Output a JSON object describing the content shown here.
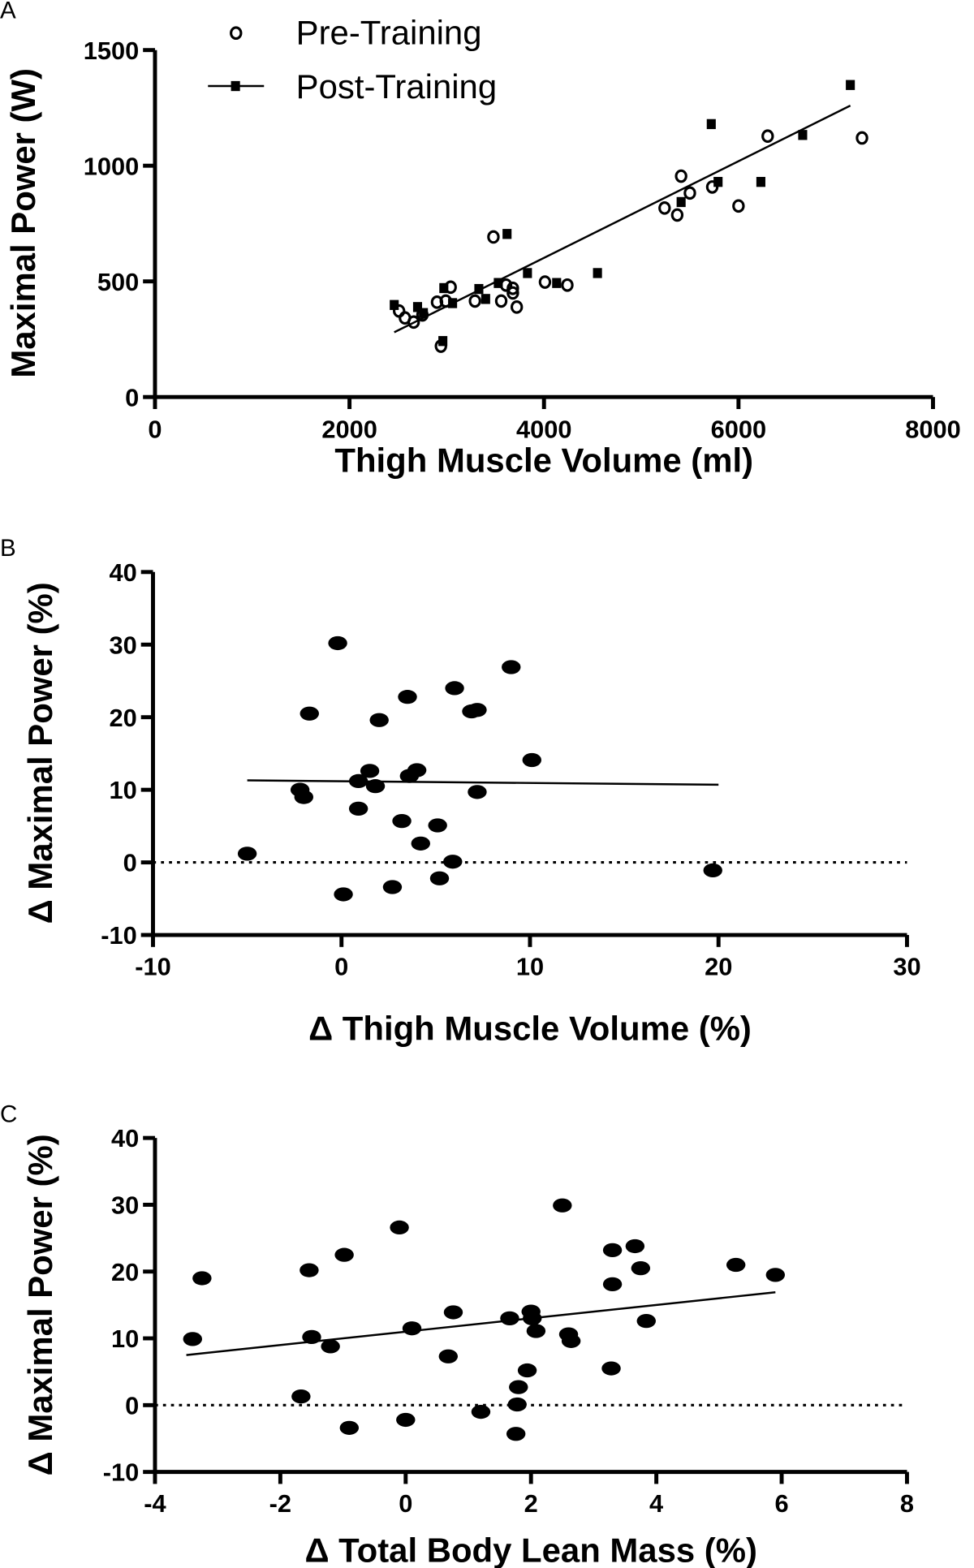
{
  "chart_data": [
    {
      "panel": "A",
      "type": "scatter",
      "xlabel": "Thigh Muscle Volume (ml)",
      "ylabel": "Maximal Power (W)",
      "xlim": [
        0,
        8000
      ],
      "ylim": [
        0,
        1500
      ],
      "xticks": [
        "0",
        "2000",
        "4000",
        "6000",
        "8000"
      ],
      "yticks": [
        "0",
        "500",
        "1000",
        "1500"
      ],
      "legend_position": "top-left",
      "series": [
        {
          "name": "Pre-Training",
          "marker": "open-circle",
          "points": [
            [
              2510,
              372
            ],
            [
              2570,
              342
            ],
            [
              2660,
              324
            ],
            [
              2750,
              355
            ],
            [
              2900,
              410
            ],
            [
              2940,
              220
            ],
            [
              2990,
              415
            ],
            [
              3040,
              475
            ],
            [
              3290,
              415
            ],
            [
              3480,
              692
            ],
            [
              3560,
              415
            ],
            [
              3610,
              484
            ],
            [
              3680,
              450
            ],
            [
              3680,
              470
            ],
            [
              3720,
              389
            ],
            [
              4010,
              497
            ],
            [
              4240,
              484
            ],
            [
              5240,
              817
            ],
            [
              5370,
              787
            ],
            [
              5410,
              955
            ],
            [
              5500,
              882
            ],
            [
              5730,
              908
            ],
            [
              6000,
              826
            ],
            [
              6300,
              1128
            ],
            [
              7270,
              1120
            ]
          ]
        },
        {
          "name": "Post-Training",
          "marker": "filled-square",
          "points": [
            [
              2460,
              398
            ],
            [
              2700,
              389
            ],
            [
              2760,
              363
            ],
            [
              2960,
              242
            ],
            [
              2970,
              471
            ],
            [
              3060,
              406
            ],
            [
              3330,
              467
            ],
            [
              3400,
              424
            ],
            [
              3530,
              493
            ],
            [
              3620,
              705
            ],
            [
              3830,
              536
            ],
            [
              4130,
              493
            ],
            [
              4550,
              536
            ],
            [
              5410,
              843
            ],
            [
              5720,
              1180
            ],
            [
              5790,
              930
            ],
            [
              6230,
              930
            ],
            [
              6660,
              1133
            ],
            [
              7150,
              1349
            ]
          ]
        }
      ],
      "fit_line": [
        [
          2460,
          280
        ],
        [
          7150,
          1260
        ]
      ]
    },
    {
      "panel": "B",
      "type": "scatter",
      "xlabel": "Δ Thigh Muscle Volume (%)",
      "ylabel": "Δ Maximal Power (%)",
      "xlim": [
        -10,
        30
      ],
      "ylim": [
        -10,
        40
      ],
      "xticks": [
        "-10",
        "0",
        "10",
        "20",
        "30"
      ],
      "yticks": [
        "-10",
        "0",
        "10",
        "20",
        "30",
        "40"
      ],
      "points": [
        [
          -5,
          1.2
        ],
        [
          -2.2,
          10
        ],
        [
          -2,
          9
        ],
        [
          -1.7,
          20.5
        ],
        [
          -0.2,
          30.2
        ],
        [
          0.1,
          -4.4
        ],
        [
          0.9,
          11.2
        ],
        [
          0.9,
          7.4
        ],
        [
          1.5,
          12.6
        ],
        [
          1.8,
          10.5
        ],
        [
          2,
          19.6
        ],
        [
          2.7,
          -3.4
        ],
        [
          3.2,
          5.7
        ],
        [
          3.5,
          22.8
        ],
        [
          3.6,
          11.9
        ],
        [
          4,
          12.7
        ],
        [
          4.2,
          2.6
        ],
        [
          5.1,
          5.1
        ],
        [
          5.2,
          -2.2
        ],
        [
          5.9,
          0.1
        ],
        [
          6,
          24
        ],
        [
          6.9,
          20.8
        ],
        [
          7.2,
          21
        ],
        [
          7.2,
          9.7
        ],
        [
          9,
          26.9
        ],
        [
          10.1,
          14.1
        ],
        [
          19.7,
          -1.1
        ]
      ],
      "fit_line": [
        [
          -5,
          11.3
        ],
        [
          20,
          10.7
        ]
      ],
      "reference_line_y": 0
    },
    {
      "panel": "C",
      "type": "scatter",
      "xlabel": "Δ Total Body Lean Mass (%)",
      "ylabel": "Δ Maximal Power (%)",
      "xlim": [
        -4,
        8
      ],
      "ylim": [
        -10,
        40
      ],
      "xticks": [
        "-4",
        "-2",
        "0",
        "2",
        "4",
        "6",
        "8"
      ],
      "yticks": [
        "-10",
        "0",
        "10",
        "20",
        "30",
        "40"
      ],
      "points": [
        [
          -3.4,
          9.9
        ],
        [
          -3.25,
          19
        ],
        [
          -1.67,
          1.3
        ],
        [
          -1.54,
          20.2
        ],
        [
          -1.5,
          10.2
        ],
        [
          -1.2,
          8.8
        ],
        [
          -0.98,
          22.5
        ],
        [
          -0.9,
          -3.4
        ],
        [
          -0.1,
          26.6
        ],
        [
          0,
          -2.2
        ],
        [
          0.1,
          11.5
        ],
        [
          0.68,
          7.3
        ],
        [
          0.76,
          13.9
        ],
        [
          1.2,
          -1.0
        ],
        [
          1.66,
          13
        ],
        [
          1.76,
          -4.3
        ],
        [
          1.78,
          0.1
        ],
        [
          1.8,
          2.7
        ],
        [
          1.94,
          5.2
        ],
        [
          2,
          14
        ],
        [
          2.02,
          13
        ],
        [
          2.08,
          11.1
        ],
        [
          2.5,
          29.9
        ],
        [
          2.6,
          10.6
        ],
        [
          2.64,
          9.6
        ],
        [
          3.28,
          5.5
        ],
        [
          3.3,
          23.2
        ],
        [
          3.3,
          18.1
        ],
        [
          3.66,
          23.8
        ],
        [
          3.75,
          20.5
        ],
        [
          3.84,
          12.6
        ],
        [
          5.27,
          21
        ],
        [
          5.9,
          19.5
        ]
      ],
      "fit_line": [
        [
          -3.5,
          7.5
        ],
        [
          5.9,
          16.9
        ]
      ],
      "reference_line_y": 0
    }
  ]
}
